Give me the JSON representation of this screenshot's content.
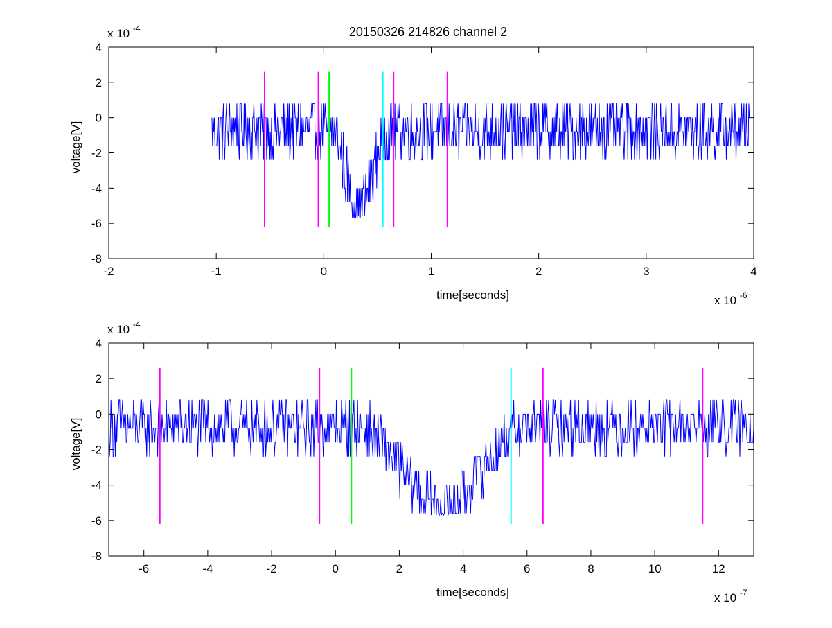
{
  "figure": {
    "title": "20150326 214826 channel 2"
  },
  "colors": {
    "signal": "#0000ff",
    "marker_magenta": "#ff00ff",
    "marker_green": "#00ff00",
    "marker_cyan": "#00ffff",
    "axes": "#000000",
    "background": "#ffffff"
  },
  "chart_data": [
    {
      "type": "line",
      "title": "20150326 214826 channel 2",
      "xlabel": "time[seconds]",
      "ylabel": "voltage[V]",
      "x_unit": 1e-06,
      "y_unit": 0.0001,
      "x_exponent_label": "x 10",
      "x_exponent": "-6",
      "y_exponent_label": "x 10",
      "y_exponent": "-4",
      "xlim": [
        -2,
        4
      ],
      "ylim": [
        -8,
        4
      ],
      "xticks": [
        -2,
        -1,
        0,
        1,
        2,
        3,
        4
      ],
      "xtick_labels": [
        "-2",
        "-1",
        "0",
        "1",
        "2",
        "3",
        "4"
      ],
      "yticks": [
        -8,
        -6,
        -4,
        -2,
        0,
        2,
        4
      ],
      "ytick_labels": [
        "-8",
        "-6",
        "-4",
        "-2",
        "0",
        "2",
        "4"
      ],
      "grid": false,
      "series": [
        {
          "color": "#0000ff",
          "x_range": [
            -1.04,
            3.96
          ],
          "dip": {
            "center": 0.33,
            "half_width": 0.27,
            "depth": -4.2
          },
          "baseline": -0.7,
          "noise_amplitude": 1.6,
          "quantum": 0.8
        }
      ],
      "markers": [
        {
          "x": -0.55,
          "ymin": -6.2,
          "ymax": 2.6,
          "color": "#ff00ff"
        },
        {
          "x": -0.05,
          "ymin": -6.2,
          "ymax": 2.6,
          "color": "#ff00ff"
        },
        {
          "x": 0.05,
          "ymin": -6.2,
          "ymax": 2.6,
          "color": "#00ff00"
        },
        {
          "x": 0.55,
          "ymin": -6.2,
          "ymax": 2.6,
          "color": "#00ffff"
        },
        {
          "x": 0.65,
          "ymin": -6.2,
          "ymax": 2.6,
          "color": "#ff00ff"
        },
        {
          "x": 1.15,
          "ymin": -6.2,
          "ymax": 2.6,
          "color": "#ff00ff"
        }
      ]
    },
    {
      "type": "line",
      "title": "",
      "xlabel": "time[seconds]",
      "ylabel": "voltage[V]",
      "x_unit": 1e-07,
      "y_unit": 0.0001,
      "x_exponent_label": "x 10",
      "x_exponent": "-7",
      "y_exponent_label": "x 10",
      "y_exponent": "-4",
      "xlim": [
        -7.1,
        13.1
      ],
      "ylim": [
        -8,
        4
      ],
      "xticks": [
        -6,
        -4,
        -2,
        0,
        2,
        4,
        6,
        8,
        10,
        12
      ],
      "xtick_labels": [
        "-6",
        "-4",
        "-2",
        "0",
        "2",
        "4",
        "6",
        "8",
        "10",
        "12"
      ],
      "yticks": [
        -8,
        -6,
        -4,
        -2,
        0,
        2,
        4
      ],
      "ytick_labels": [
        "-8",
        "-6",
        "-4",
        "-2",
        "0",
        "2",
        "4"
      ],
      "grid": false,
      "series": [
        {
          "color": "#0000ff",
          "x_range": [
            -7.1,
            13.1
          ],
          "dip": {
            "center": 3.3,
            "half_width": 2.7,
            "depth": -4.2
          },
          "baseline": -0.7,
          "noise_amplitude": 1.5,
          "quantum": 0.8
        }
      ],
      "markers": [
        {
          "x": -5.5,
          "ymin": -6.2,
          "ymax": 2.6,
          "color": "#ff00ff"
        },
        {
          "x": -0.5,
          "ymin": -6.2,
          "ymax": 2.6,
          "color": "#ff00ff"
        },
        {
          "x": 0.5,
          "ymin": -6.2,
          "ymax": 2.6,
          "color": "#00ff00"
        },
        {
          "x": 5.5,
          "ymin": -6.2,
          "ymax": 2.6,
          "color": "#00ffff"
        },
        {
          "x": 6.5,
          "ymin": -6.2,
          "ymax": 2.6,
          "color": "#ff00ff"
        },
        {
          "x": 11.5,
          "ymin": -6.2,
          "ymax": 2.6,
          "color": "#ff00ff"
        }
      ]
    }
  ]
}
